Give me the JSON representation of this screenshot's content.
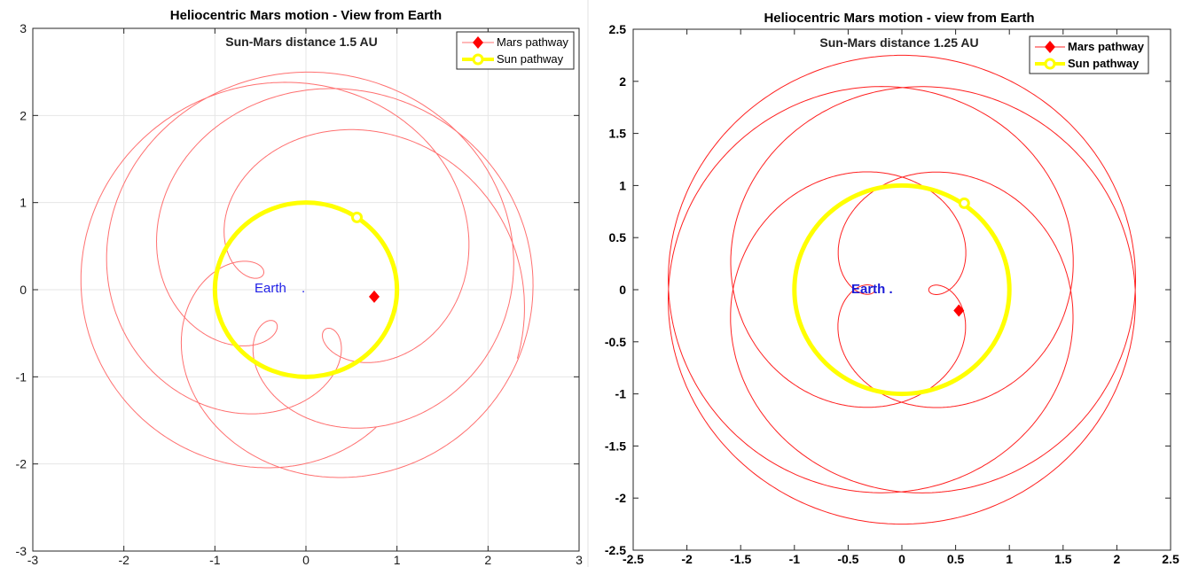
{
  "chart_data": [
    {
      "type": "line",
      "title": "Heliocentric Mars motion - View from Earth",
      "subtitle": "Sun-Mars distance 1.5 AU",
      "xlim": [
        -3,
        3
      ],
      "ylim": [
        -3,
        3
      ],
      "xticks": [
        "-3",
        "-2",
        "-1",
        "0",
        "1",
        "2",
        "3"
      ],
      "yticks": [
        "-3",
        "-2",
        "-1",
        "0",
        "1",
        "2",
        "3"
      ],
      "grid": true,
      "legend_position": "top-right",
      "legend": [
        "Mars pathway",
        "Sun pathway"
      ],
      "annotations": [
        {
          "text": "Earth",
          "x": -0.55,
          "y": 0.0
        },
        {
          "text": ".",
          "x": -0.02,
          "y": 0.0
        }
      ],
      "series": [
        {
          "name": "Mars pathway",
          "color": "#ff7070",
          "curve": "epicycle",
          "sun_orbit_radius": 1.0,
          "mars_orbit_radius": 1.5,
          "revolutions": 7,
          "start_angle_deg": -5,
          "current_position": [
            0.75,
            -0.08
          ]
        },
        {
          "name": "Sun pathway",
          "color": "#ffff00",
          "curve": "circle",
          "radius": 1.0,
          "center": [
            0,
            0
          ],
          "current_position": [
            0.56,
            0.83
          ]
        }
      ]
    },
    {
      "type": "line",
      "title": "Heliocentric Mars motion - view from Earth",
      "subtitle": "Sun-Mars distance 1.25 AU",
      "xlim": [
        -2.5,
        2.5
      ],
      "ylim": [
        -2.5,
        2.5
      ],
      "xticks": [
        "-2.5",
        "-2",
        "-1.5",
        "-1",
        "-0.5",
        "0",
        "0.5",
        "1",
        "1.5",
        "2",
        "2.5"
      ],
      "yticks": [
        "-2.5",
        "-2",
        "-1.5",
        "-1",
        "-0.5",
        "0",
        "0.5",
        "1",
        "1.5",
        "2",
        "2.5"
      ],
      "grid": false,
      "legend_position": "top-right",
      "legend": [
        "Mars pathway",
        "Sun pathway"
      ],
      "annotations": [
        {
          "text": "Earth .",
          "x": -0.3,
          "y": 0.0
        }
      ],
      "series": [
        {
          "name": "Mars pathway",
          "color": "#ff2020",
          "curve": "epicycle",
          "sun_orbit_radius": 1.0,
          "mars_orbit_radius": 1.25,
          "revolutions": 7,
          "start_angle_deg": -10,
          "current_position": [
            0.53,
            -0.2
          ]
        },
        {
          "name": "Sun pathway",
          "color": "#ffff00",
          "curve": "circle",
          "radius": 1.0,
          "center": [
            0,
            0
          ],
          "current_position": [
            0.58,
            0.83
          ]
        }
      ]
    }
  ]
}
